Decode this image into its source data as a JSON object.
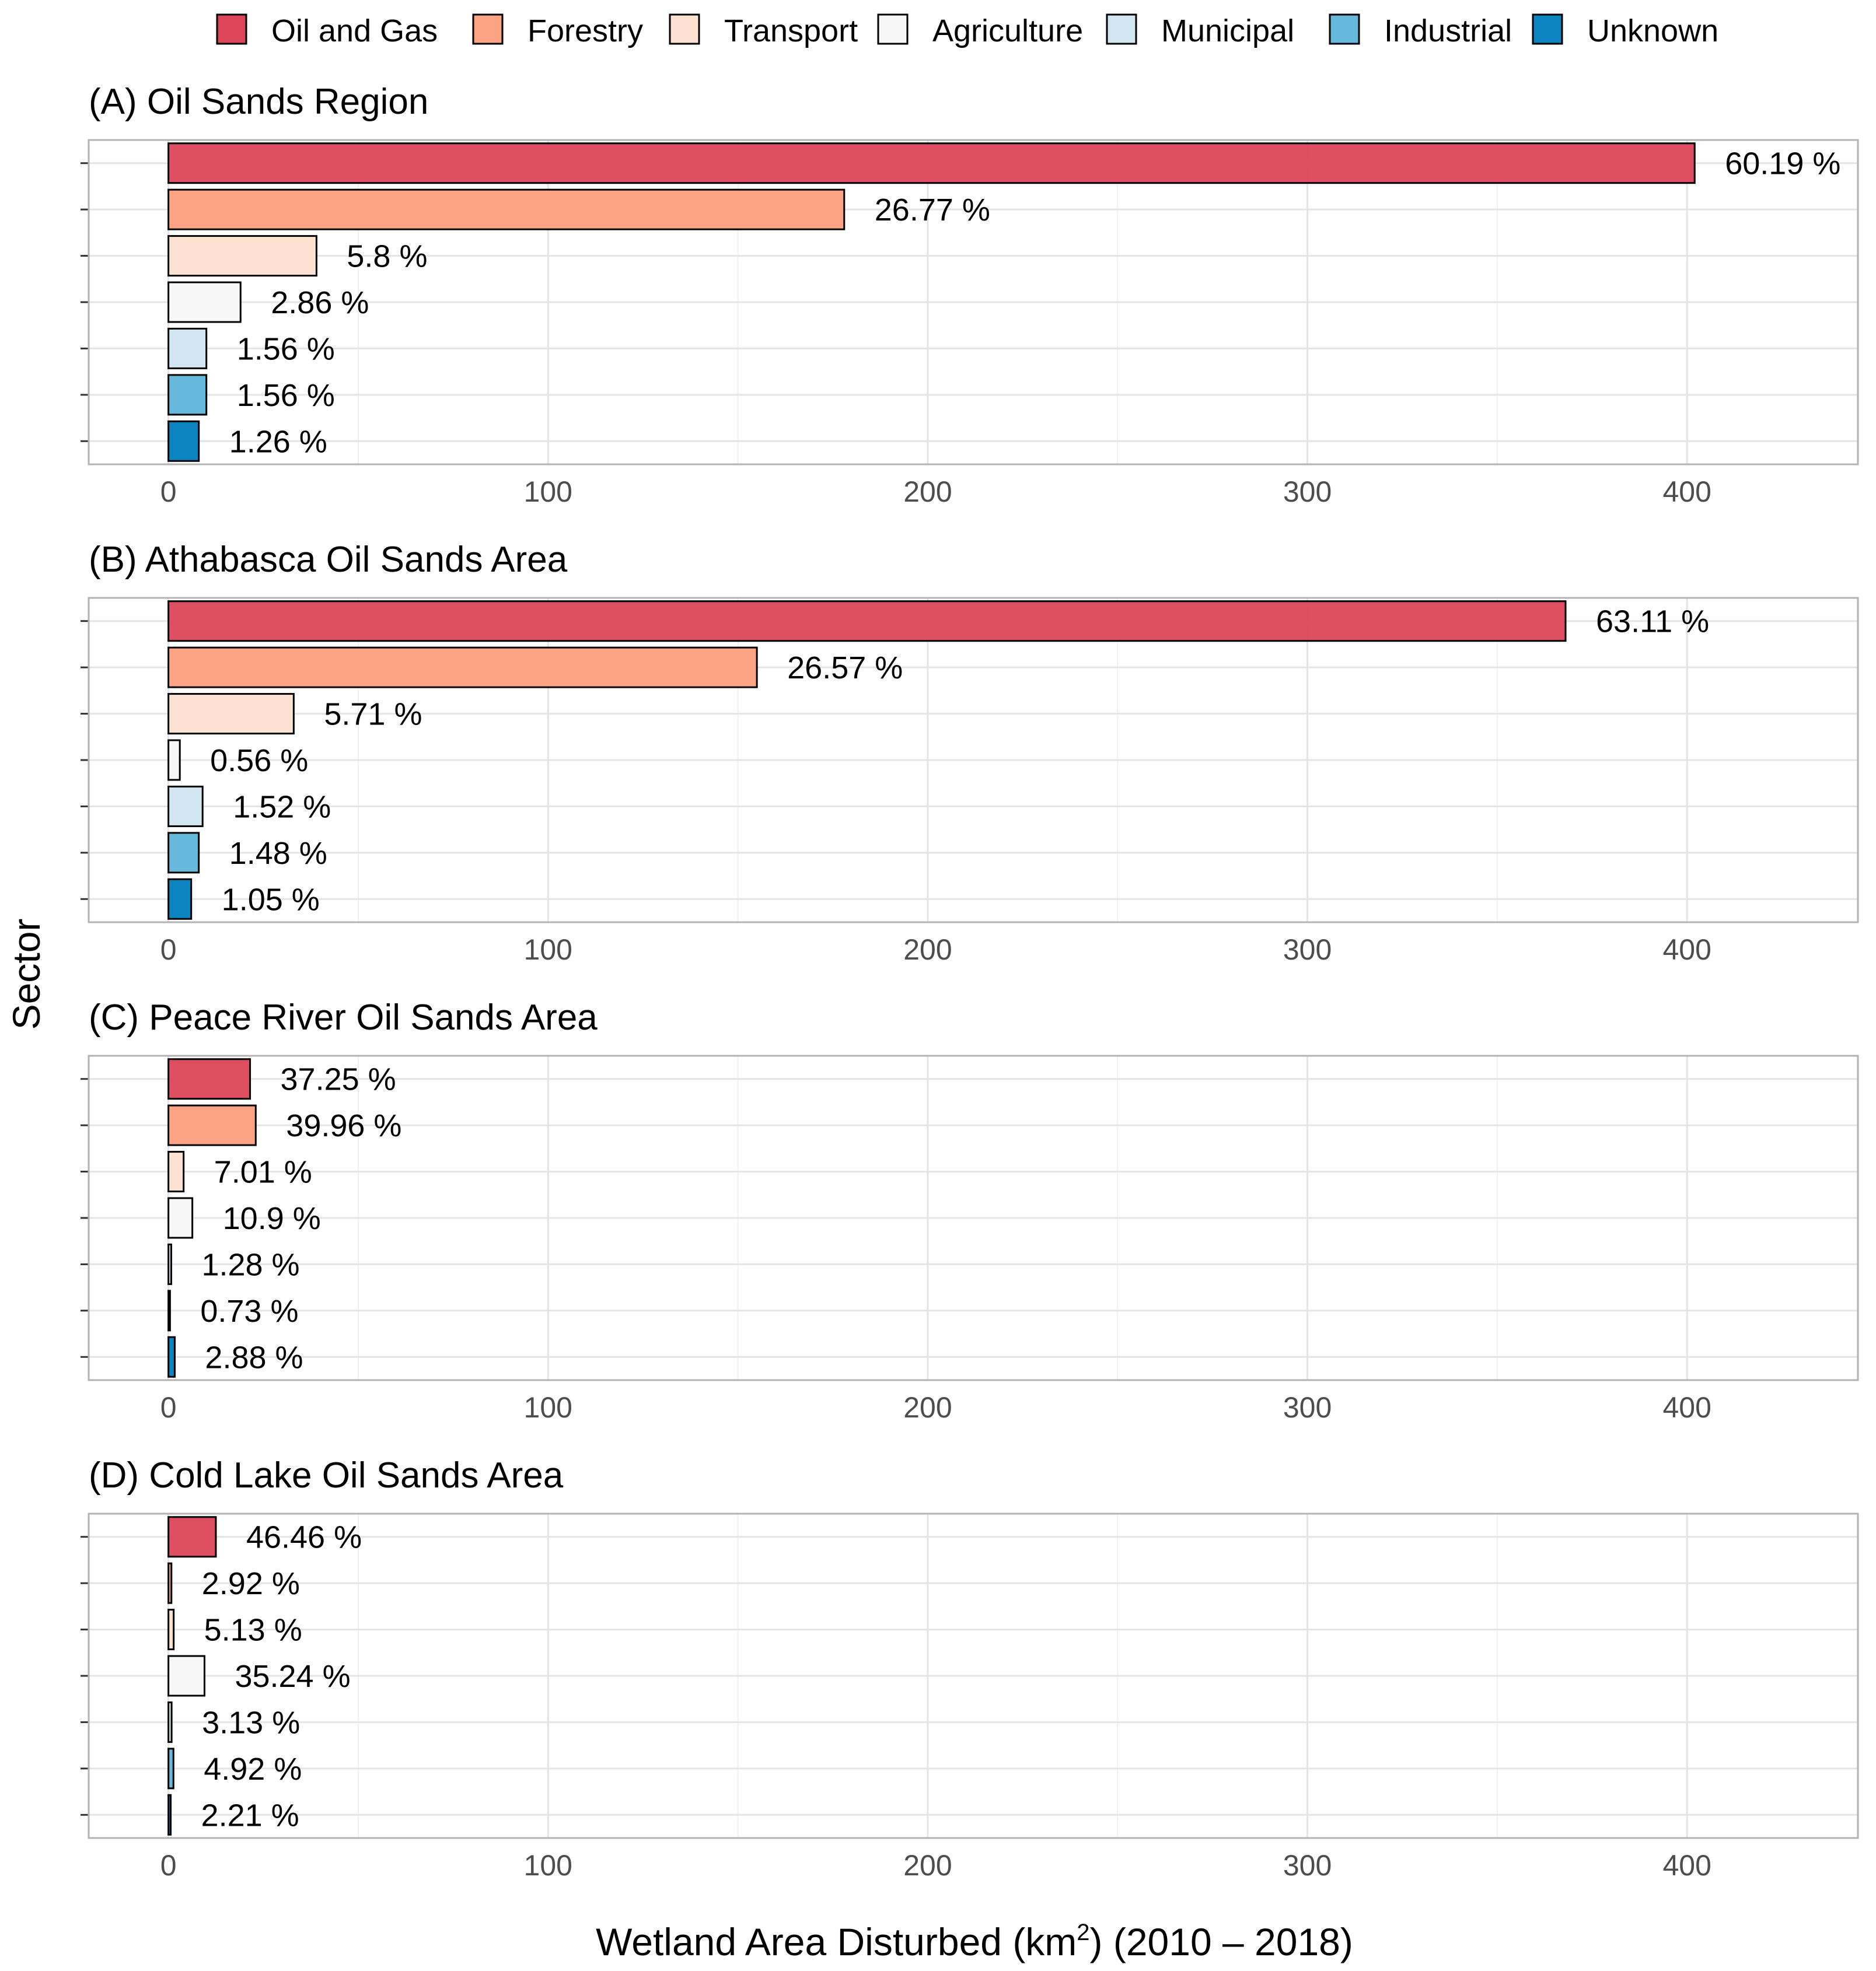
{
  "legend": {
    "items": [
      "Oil and Gas",
      "Forestry",
      "Transport",
      "Agriculture",
      "Municipal",
      "Industrial",
      "Unknown"
    ]
  },
  "axis": {
    "x_title_main": "Wetland Area Disturbed (km",
    "x_title_sup": "2",
    "x_title_tail": ") (2010 – 2018)",
    "y_title": "Sector"
  },
  "chart_data": {
    "type": "bar",
    "orientation": "horizontal",
    "xlabel": "Wetland Area Disturbed (km2) (2010 - 2018)",
    "ylabel": "Sector",
    "xlim": [
      -21,
      445
    ],
    "xticks": [
      0,
      100,
      200,
      300,
      400
    ],
    "categories": [
      "Oil and Gas",
      "Forestry",
      "Transport",
      "Agriculture",
      "Municipal",
      "Industrial",
      "Unknown"
    ],
    "colors": [
      "#dc4458",
      "#fca383",
      "#fde2d2",
      "#f7f7f7",
      "#d2e6f1",
      "#66b9db",
      "#0b84bf"
    ],
    "grid": true,
    "legend_position": "top",
    "panels": [
      {
        "title": "(A) Oil Sands Region",
        "values": [
          402,
          178,
          39,
          19,
          10,
          10,
          8
        ],
        "labels": [
          "60.19 %",
          "26.77 %",
          "5.8 %",
          "2.86 %",
          "1.56 %",
          "1.56 %",
          "1.26 %"
        ]
      },
      {
        "title": "(B) Athabasca Oil Sands Area",
        "values": [
          368,
          155,
          33,
          3,
          9,
          8,
          6
        ],
        "labels": [
          "63.11 %",
          "26.57 %",
          "5.71 %",
          "0.56 %",
          "1.52 %",
          "1.48 %",
          "1.05 %"
        ]
      },
      {
        "title": "(C) Peace River Oil Sands Area",
        "values": [
          21.5,
          23,
          4,
          6.3,
          0.74,
          0.42,
          1.66
        ],
        "labels": [
          "37.25 %",
          "39.96 %",
          "7.01 %",
          "10.9 %",
          "1.28 %",
          "0.73 %",
          "2.88 %"
        ]
      },
      {
        "title": "(D) Cold Lake Oil Sands Area",
        "values": [
          12.5,
          0.79,
          1.38,
          9.5,
          0.84,
          1.32,
          0.6
        ],
        "labels": [
          "46.46 %",
          "2.92 %",
          "5.13 %",
          "35.24 %",
          "3.13 %",
          "4.92 %",
          "2.21 %"
        ]
      }
    ]
  }
}
